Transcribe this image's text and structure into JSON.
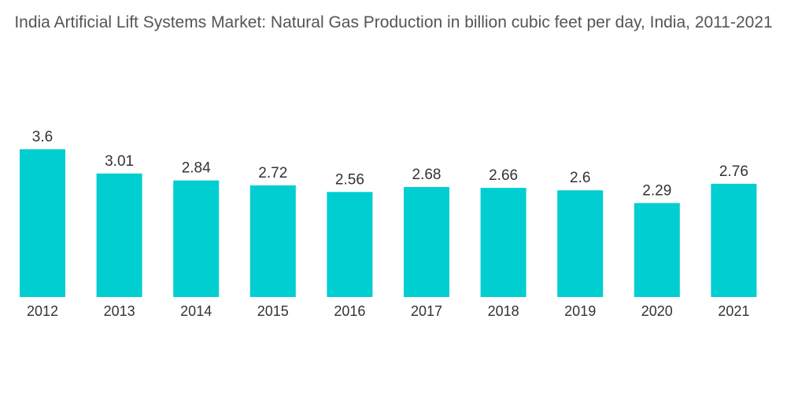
{
  "chart_data": {
    "type": "bar",
    "title": "India Artificial Lift Systems Market: Natural Gas Production in billion cubic feet per day, India, 2011-2021",
    "categories": [
      "2012",
      "2013",
      "2014",
      "2015",
      "2016",
      "2017",
      "2018",
      "2019",
      "2020",
      "2021"
    ],
    "values": [
      3.6,
      3.01,
      2.84,
      2.72,
      2.56,
      2.68,
      2.66,
      2.6,
      2.29,
      2.76
    ],
    "value_labels": [
      "3.6",
      "3.01",
      "2.84",
      "2.72",
      "2.56",
      "2.68",
      "2.66",
      "2.6",
      "2.29",
      "2.76"
    ],
    "xlabel": "",
    "ylabel": "",
    "ylim": [
      0,
      3.6
    ],
    "grid": false,
    "legend": "none",
    "bar_color": "#00CED1"
  }
}
